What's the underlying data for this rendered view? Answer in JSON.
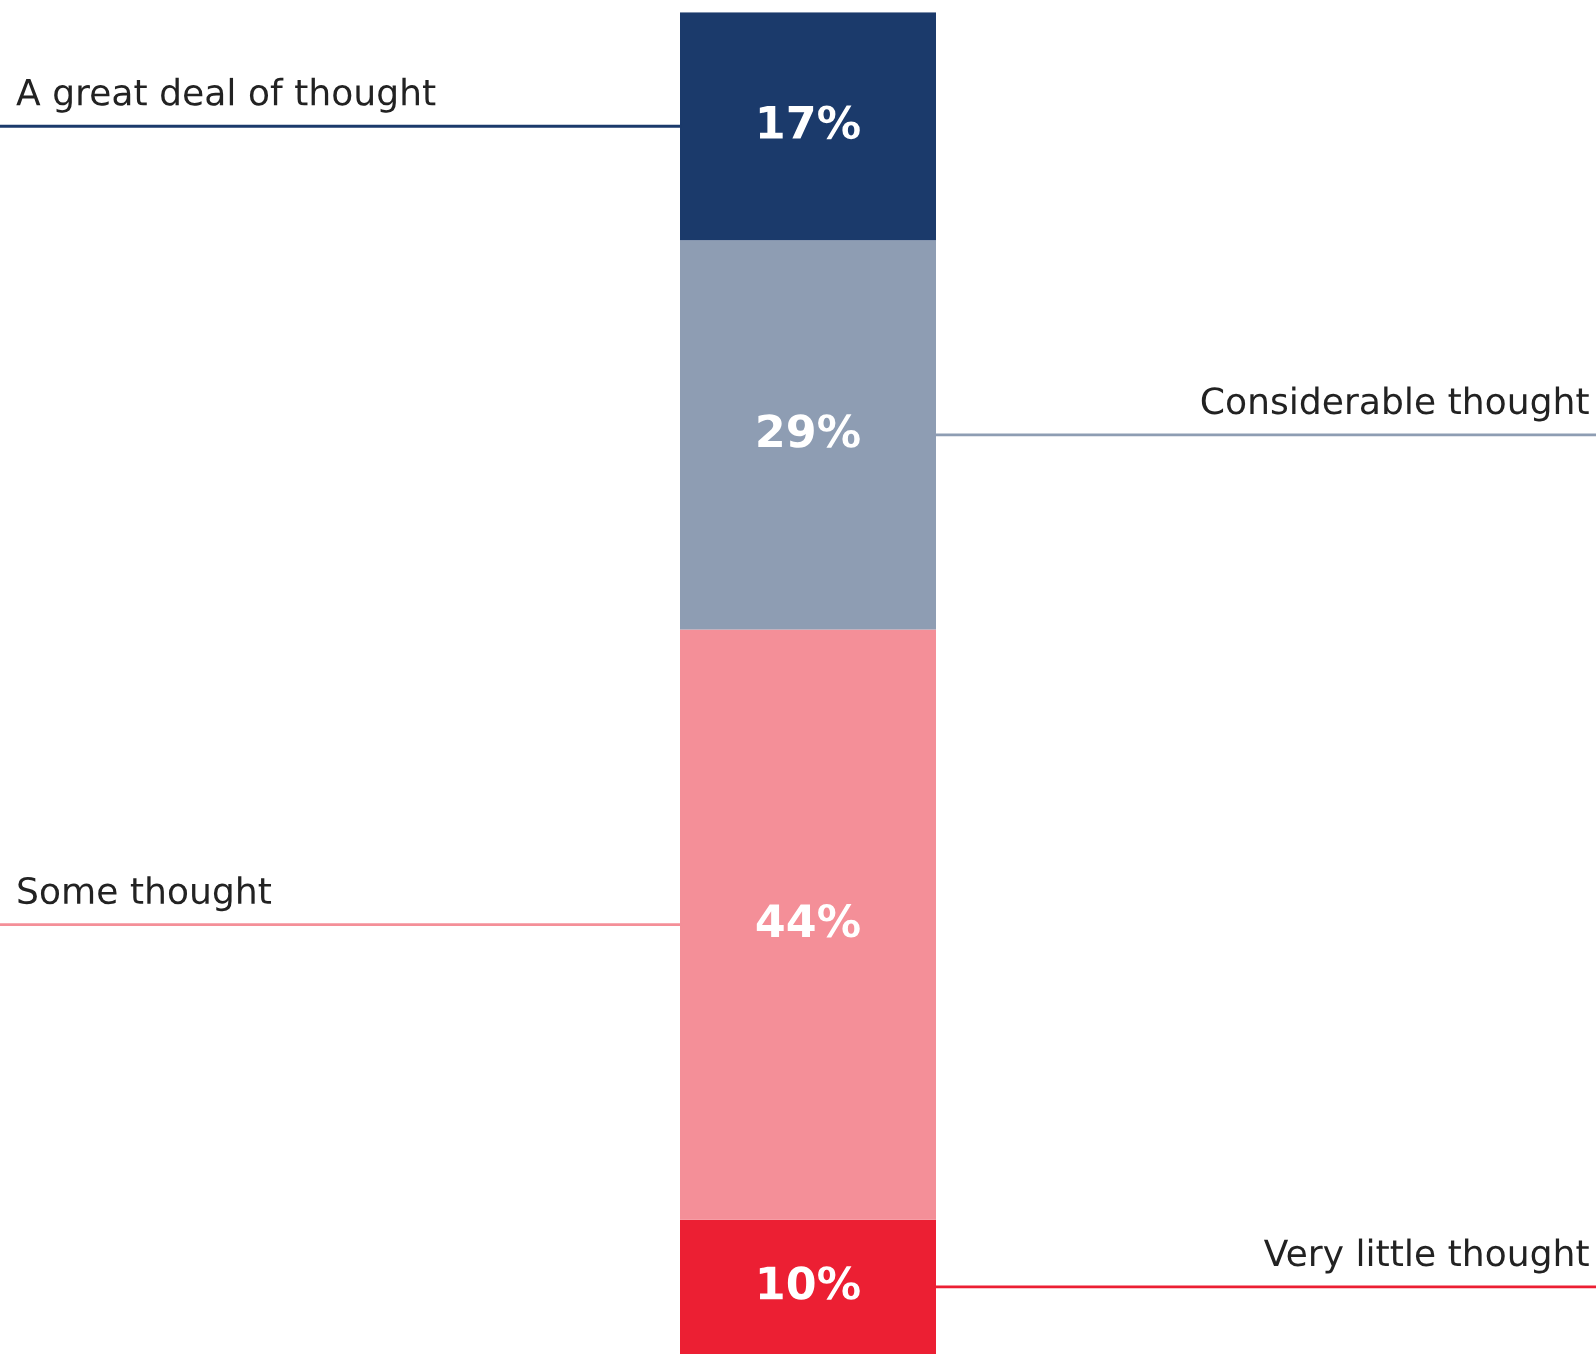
{
  "chart_data": {
    "type": "bar",
    "stacked": true,
    "categories": [
      null
    ],
    "series": [
      {
        "name": "Very little thought",
        "color": "#ec1f33",
        "values": [
          10
        ],
        "value_labels": [
          "10%"
        ]
      },
      {
        "name": "Some thought",
        "color": "#f48f98",
        "values": [
          44
        ],
        "value_labels": [
          "44%"
        ]
      },
      {
        "name": "Considerable thought",
        "color": "#8e9db3",
        "values": [
          29
        ],
        "value_labels": [
          "29%"
        ]
      },
      {
        "name": "A great deal of thought",
        "color": "#1b3a6b",
        "values": [
          17
        ],
        "value_labels": [
          "17%"
        ]
      }
    ]
  }
}
